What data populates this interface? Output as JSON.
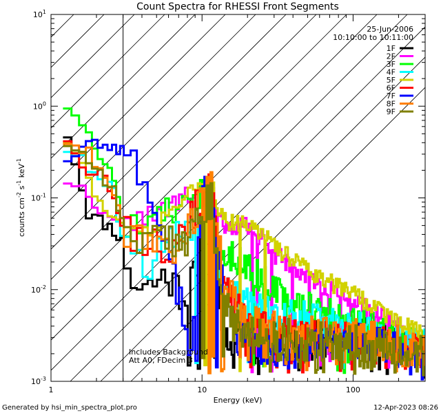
{
  "chart_data": {
    "type": "line",
    "title": "Count Spectra for RHESSI Front Segments",
    "xlabel": "Energy (keV)",
    "ylabel_parts": [
      "counts cm",
      "-2",
      " s",
      "-1",
      " keV",
      "-1"
    ],
    "xscale": "log",
    "yscale": "log",
    "xlim": [
      1,
      300
    ],
    "ylim": [
      0.001,
      10
    ],
    "x_ticks": [
      {
        "value": 1,
        "label": "1"
      },
      {
        "value": 10,
        "label": "10"
      },
      {
        "value": 100,
        "label": "100"
      }
    ],
    "y_ticks": [
      {
        "value": 0.001,
        "label_base": "10",
        "label_exp": "-3"
      },
      {
        "value": 0.01,
        "label_base": "10",
        "label_exp": "-2"
      },
      {
        "value": 0.1,
        "label_base": "10",
        "label_exp": "-1"
      },
      {
        "value": 1,
        "label_base": "10",
        "label_exp": "0"
      },
      {
        "value": 10,
        "label_base": "10",
        "label_exp": "1"
      }
    ],
    "hatched_region_max_energy": 3,
    "date": "25-Jun-2006",
    "time_range": "10:10:00 to 10:11:00",
    "annotations": [
      "Includes Background",
      "Att A0, FDecim 3"
    ],
    "series": [
      {
        "name": "1F",
        "color": "#000000",
        "anchors": [
          [
            1.3,
            0.5
          ],
          [
            1.5,
            0.2
          ],
          [
            1.8,
            0.065
          ],
          [
            2.2,
            0.055
          ],
          [
            2.6,
            0.045
          ],
          [
            3,
            0.032
          ],
          [
            3.5,
            0.012
          ],
          [
            4.5,
            0.011
          ],
          [
            5.5,
            0.014
          ],
          [
            6.5,
            0.012
          ],
          [
            7.5,
            0.009
          ],
          [
            8.5,
            0.011
          ],
          [
            9.5,
            0.03
          ],
          [
            10.5,
            0.09
          ],
          [
            11.5,
            0.05
          ],
          [
            12,
            0.06
          ],
          [
            13,
            0.01
          ],
          [
            14,
            0.003
          ],
          [
            17,
            0.003
          ],
          [
            22,
            0.0023
          ],
          [
            30,
            0.0035
          ],
          [
            45,
            0.003
          ],
          [
            70,
            0.003
          ],
          [
            100,
            0.0032
          ],
          [
            150,
            0.0028
          ],
          [
            200,
            0.0025
          ],
          [
            280,
            0.0018
          ]
        ],
        "seed": 11,
        "jit": 0.5,
        "dropP": 0.1
      },
      {
        "name": "2F",
        "color": "#ff00ff",
        "anchors": [
          [
            1.3,
            0.15
          ],
          [
            1.6,
            0.13
          ],
          [
            2,
            0.08
          ],
          [
            2.4,
            0.06
          ],
          [
            3,
            0.05
          ],
          [
            3.6,
            0.055
          ],
          [
            4.5,
            0.07
          ],
          [
            5.5,
            0.07
          ],
          [
            7,
            0.09
          ],
          [
            8.5,
            0.11
          ],
          [
            10,
            0.12
          ],
          [
            11.5,
            0.14
          ],
          [
            12.5,
            0.07
          ],
          [
            14,
            0.05
          ],
          [
            17,
            0.05
          ],
          [
            22,
            0.045
          ],
          [
            30,
            0.025
          ],
          [
            45,
            0.016
          ],
          [
            70,
            0.01
          ],
          [
            100,
            0.0075
          ],
          [
            150,
            0.005
          ],
          [
            200,
            0.004
          ],
          [
            280,
            0.003
          ]
        ],
        "seed": 22,
        "jit": 0.25,
        "dropP": 0.02
      },
      {
        "name": "3F",
        "color": "#00ff00",
        "anchors": [
          [
            1.25,
            1.05
          ],
          [
            1.5,
            0.8
          ],
          [
            1.8,
            0.45
          ],
          [
            2.2,
            0.25
          ],
          [
            2.7,
            0.15
          ],
          [
            3,
            0.04
          ],
          [
            3.6,
            0.05
          ],
          [
            4.5,
            0.045
          ],
          [
            5.5,
            0.07
          ],
          [
            7,
            0.075
          ],
          [
            8.5,
            0.08
          ],
          [
            10,
            0.12
          ],
          [
            11.5,
            0.15
          ],
          [
            12.5,
            0.04
          ],
          [
            14,
            0.025
          ],
          [
            17,
            0.022
          ],
          [
            22,
            0.016
          ],
          [
            30,
            0.01
          ],
          [
            45,
            0.007
          ],
          [
            70,
            0.0055
          ],
          [
            100,
            0.0045
          ],
          [
            150,
            0.0035
          ],
          [
            200,
            0.003
          ],
          [
            280,
            0.0025
          ]
        ],
        "seed": 33,
        "jit": 0.4,
        "dropP": 0.06
      },
      {
        "name": "4F",
        "color": "#00ffff",
        "anchors": [
          [
            1.25,
            0.35
          ],
          [
            1.5,
            0.3
          ],
          [
            1.8,
            0.2
          ],
          [
            2.2,
            0.15
          ],
          [
            2.6,
            0.12
          ],
          [
            3,
            0.03
          ],
          [
            3.6,
            0.022
          ],
          [
            4.5,
            0.02
          ],
          [
            5.5,
            0.025
          ],
          [
            7,
            0.04
          ],
          [
            8.5,
            0.05
          ],
          [
            10,
            0.08
          ],
          [
            11.5,
            0.1
          ],
          [
            12.5,
            0.02
          ],
          [
            14,
            0.01
          ],
          [
            17,
            0.008
          ],
          [
            22,
            0.006
          ],
          [
            30,
            0.005
          ],
          [
            45,
            0.0048
          ],
          [
            70,
            0.0045
          ],
          [
            100,
            0.004
          ],
          [
            150,
            0.0035
          ],
          [
            200,
            0.003
          ],
          [
            280,
            0.0025
          ]
        ],
        "seed": 44,
        "jit": 0.45,
        "dropP": 0.07
      },
      {
        "name": "5F",
        "color": "#d2d200",
        "anchors": [
          [
            1.3,
            0.42
          ],
          [
            1.6,
            0.25
          ],
          [
            2,
            0.1
          ],
          [
            2.4,
            0.07
          ],
          [
            3,
            0.05
          ],
          [
            3.6,
            0.05
          ],
          [
            4.5,
            0.045
          ],
          [
            5.5,
            0.06
          ],
          [
            7,
            0.09
          ],
          [
            8.5,
            0.11
          ],
          [
            10,
            0.13
          ],
          [
            11.5,
            0.15
          ],
          [
            12.5,
            0.08
          ],
          [
            14,
            0.055
          ],
          [
            17,
            0.055
          ],
          [
            22,
            0.05
          ],
          [
            30,
            0.03
          ],
          [
            45,
            0.018
          ],
          [
            70,
            0.012
          ],
          [
            100,
            0.009
          ],
          [
            150,
            0.006
          ],
          [
            200,
            0.0045
          ],
          [
            280,
            0.0035
          ]
        ],
        "seed": 55,
        "jit": 0.22,
        "dropP": 0.02
      },
      {
        "name": "6F",
        "color": "#ff0000",
        "anchors": [
          [
            1.3,
            0.45
          ],
          [
            1.5,
            0.3
          ],
          [
            1.8,
            0.2
          ],
          [
            2.2,
            0.17
          ],
          [
            2.6,
            0.12
          ],
          [
            3,
            0.04
          ],
          [
            3.6,
            0.04
          ],
          [
            4.5,
            0.035
          ],
          [
            5.5,
            0.03
          ],
          [
            7,
            0.028
          ],
          [
            8.5,
            0.06
          ],
          [
            10,
            0.1
          ],
          [
            11.5,
            0.12
          ],
          [
            12.5,
            0.03
          ],
          [
            14,
            0.01
          ],
          [
            17,
            0.006
          ],
          [
            22,
            0.004
          ],
          [
            30,
            0.0035
          ],
          [
            45,
            0.003
          ],
          [
            70,
            0.003
          ],
          [
            100,
            0.0028
          ],
          [
            150,
            0.0025
          ],
          [
            200,
            0.0022
          ],
          [
            280,
            0.002
          ]
        ],
        "seed": 66,
        "jit": 0.5,
        "dropP": 0.1
      },
      {
        "name": "7F",
        "color": "#0000ff",
        "anchors": [
          [
            1.3,
            0.27
          ],
          [
            1.5,
            0.32
          ],
          [
            1.8,
            0.42
          ],
          [
            2.2,
            0.38
          ],
          [
            2.6,
            0.36
          ],
          [
            3,
            0.34
          ],
          [
            3.5,
            0.25
          ],
          [
            4,
            0.17
          ],
          [
            4.5,
            0.1
          ],
          [
            5,
            0.06
          ],
          [
            5.5,
            0.04
          ],
          [
            6,
            0.02
          ],
          [
            7,
            0.01
          ],
          [
            8,
            0.004
          ],
          [
            8.5,
            0.0015
          ],
          [
            9.5,
            0.03
          ],
          [
            10.5,
            0.16
          ],
          [
            11.5,
            0.09
          ],
          [
            12.5,
            0.03
          ],
          [
            14,
            0.008
          ],
          [
            17,
            0.003
          ],
          [
            22,
            0.0025
          ],
          [
            30,
            0.0022
          ],
          [
            45,
            0.0022
          ],
          [
            70,
            0.0025
          ],
          [
            100,
            0.0028
          ],
          [
            150,
            0.0026
          ],
          [
            200,
            0.0022
          ],
          [
            280,
            0.0015
          ]
        ],
        "seed": 77,
        "jit": 0.45,
        "dropP": 0.08
      },
      {
        "name": "8F",
        "color": "#ff8000",
        "anchors": [
          [
            1.3,
            0.42
          ],
          [
            1.5,
            0.4
          ],
          [
            1.8,
            0.3
          ],
          [
            2.2,
            0.2
          ],
          [
            2.6,
            0.12
          ],
          [
            3,
            0.05
          ],
          [
            3.6,
            0.045
          ],
          [
            4.5,
            0.04
          ],
          [
            5.5,
            0.03
          ],
          [
            7,
            0.03
          ],
          [
            8.5,
            0.06
          ],
          [
            10,
            0.08
          ],
          [
            11.5,
            0.16
          ],
          [
            12.5,
            0.04
          ],
          [
            14,
            0.015
          ],
          [
            17,
            0.006
          ],
          [
            22,
            0.004
          ],
          [
            30,
            0.0035
          ],
          [
            45,
            0.0033
          ],
          [
            70,
            0.003
          ],
          [
            100,
            0.003
          ],
          [
            150,
            0.0028
          ],
          [
            200,
            0.0025
          ],
          [
            280,
            0.002
          ]
        ],
        "seed": 88,
        "jit": 0.5,
        "dropP": 0.1
      },
      {
        "name": "9F",
        "color": "#808000",
        "anchors": [
          [
            1.3,
            0.4
          ],
          [
            1.5,
            0.35
          ],
          [
            1.8,
            0.25
          ],
          [
            2.2,
            0.18
          ],
          [
            2.6,
            0.12
          ],
          [
            3,
            0.05
          ],
          [
            3.6,
            0.04
          ],
          [
            4.5,
            0.035
          ],
          [
            5.5,
            0.03
          ],
          [
            7,
            0.03
          ],
          [
            8.5,
            0.05
          ],
          [
            10,
            0.07
          ],
          [
            11.5,
            0.1
          ],
          [
            12.5,
            0.02
          ],
          [
            14,
            0.008
          ],
          [
            17,
            0.004
          ],
          [
            22,
            0.003
          ],
          [
            30,
            0.0028
          ],
          [
            45,
            0.0028
          ],
          [
            70,
            0.0026
          ],
          [
            100,
            0.0025
          ],
          [
            150,
            0.0022
          ],
          [
            200,
            0.002
          ],
          [
            280,
            0.0018
          ]
        ],
        "seed": 99,
        "jit": 0.55,
        "dropP": 0.12
      }
    ]
  },
  "footer": {
    "generated_by": "Generated by hsi_min_spectra_plot.pro",
    "timestamp": "12-Apr-2023 08:26"
  }
}
